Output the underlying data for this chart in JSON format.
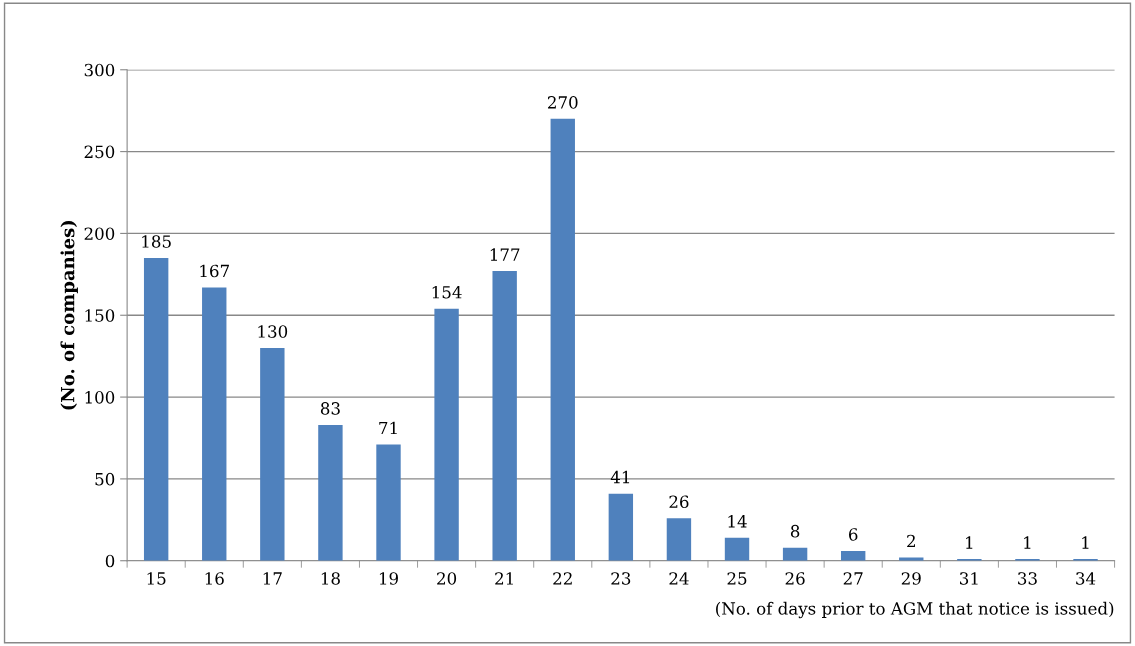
{
  "chart_data": {
    "type": "bar",
    "xlabel": "(No. of days prior to AGM that notice is issued)",
    "ylabel": "(No. of companies)",
    "categories": [
      "15",
      "16",
      "17",
      "18",
      "19",
      "20",
      "21",
      "22",
      "23",
      "24",
      "25",
      "26",
      "27",
      "29",
      "31",
      "33",
      "34"
    ],
    "values": [
      185,
      167,
      130,
      83,
      71,
      154,
      177,
      270,
      41,
      26,
      14,
      8,
      6,
      2,
      1,
      1,
      1
    ],
    "color": "#4f81bd",
    "ylim": [
      0,
      300
    ],
    "yticks": [
      0,
      50,
      100,
      150,
      200,
      250,
      300
    ],
    "grid": "y",
    "data_labels": true
  }
}
